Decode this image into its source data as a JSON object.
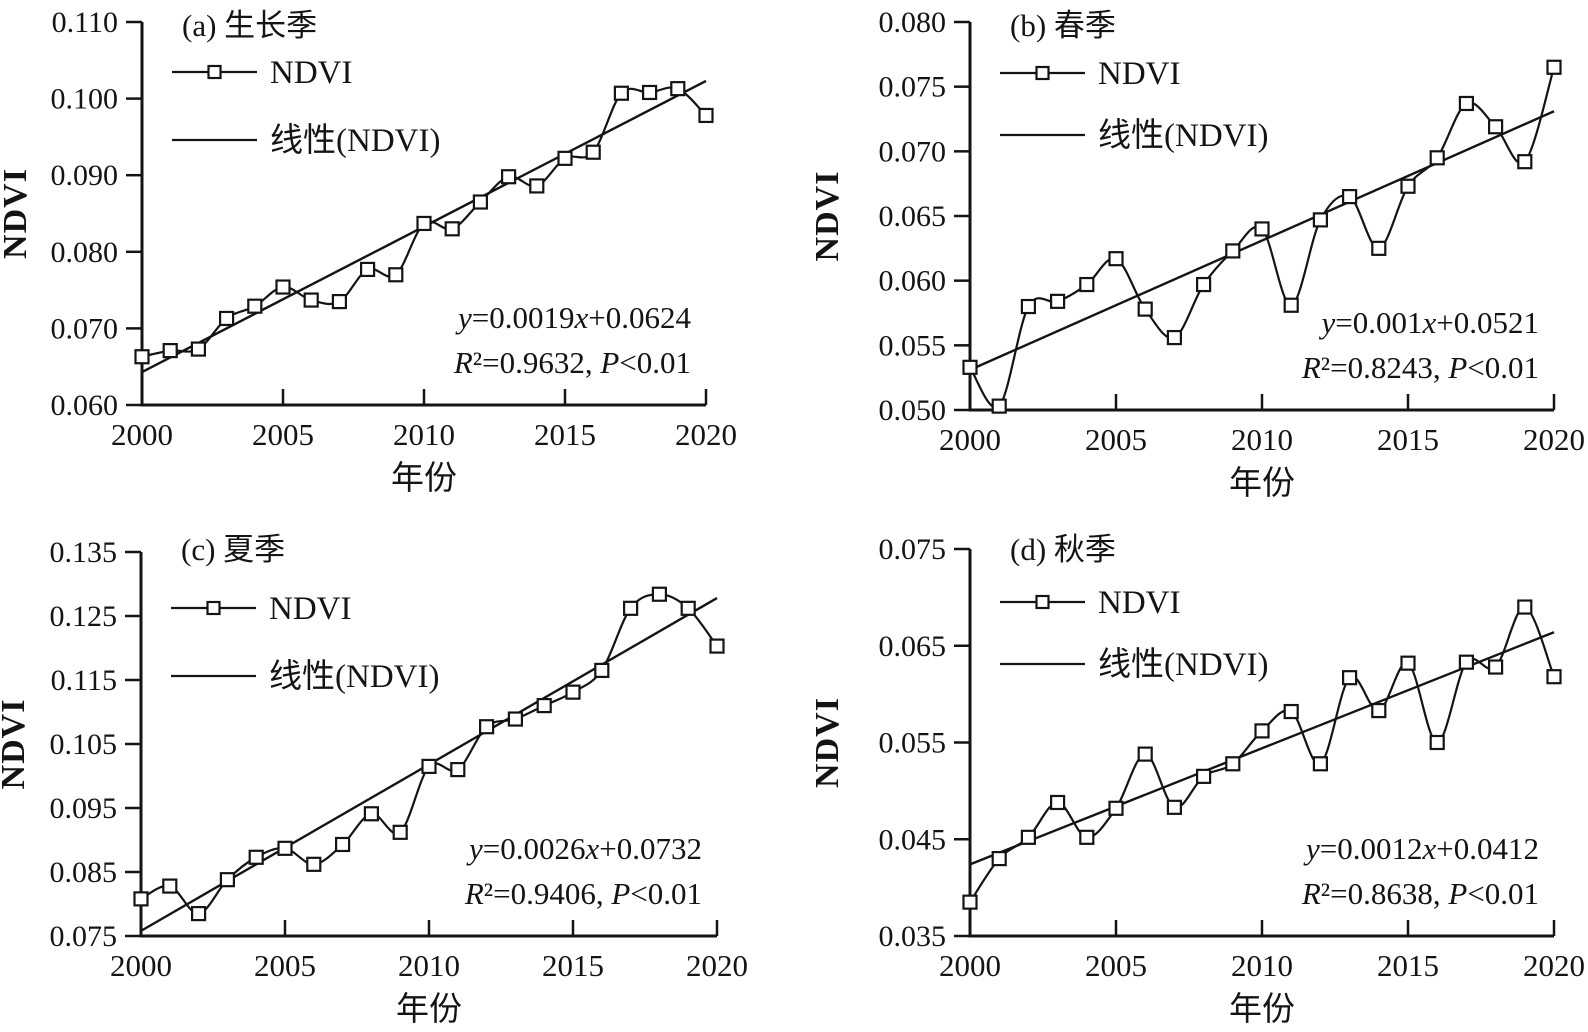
{
  "figure": {
    "x_axis_label": "年份",
    "y_axis_label": "NDVI",
    "legend_series_label": "NDVI",
    "legend_trend_label": "线性(NDVI)",
    "line_color": "#141414",
    "marker_fill": "#ffffff"
  },
  "chart_data": [
    {
      "id": "a",
      "type": "line",
      "title": "(a) 生长季",
      "xlabel": "年份",
      "ylabel": "NDVI",
      "x": [
        2000,
        2001,
        2002,
        2003,
        2004,
        2005,
        2006,
        2007,
        2008,
        2009,
        2010,
        2011,
        2012,
        2013,
        2014,
        2015,
        2016,
        2017,
        2018,
        2019,
        2020
      ],
      "series": [
        {
          "name": "NDVI",
          "values": [
            0.0663,
            0.0671,
            0.0673,
            0.0713,
            0.0729,
            0.0754,
            0.0737,
            0.0735,
            0.0777,
            0.077,
            0.0837,
            0.083,
            0.0865,
            0.0898,
            0.0886,
            0.0922,
            0.093,
            0.1007,
            0.1008,
            0.1013,
            0.0978
          ]
        }
      ],
      "trend": {
        "name": "线性(NDVI)",
        "slope": 0.0019,
        "intercept": 0.0624
      },
      "equation": "y=0.0019x+0.0624",
      "stats": "R²=0.9632, P<0.01",
      "ylim": [
        0.06,
        0.11
      ],
      "yticks": [
        0.06,
        0.07,
        0.08,
        0.09,
        0.1,
        0.11
      ],
      "y_tick_labels": [
        "0.060",
        "0.070",
        "0.080",
        "0.090",
        "0.100",
        "0.110"
      ],
      "xticks": [
        2000,
        2005,
        2010,
        2015,
        2020
      ],
      "x_tick_labels": [
        "2000",
        "2005",
        "2010",
        "2015",
        "2020"
      ],
      "legend": [
        "NDVI",
        "线性(NDVI)"
      ],
      "legend_position": "top-left",
      "grid": false
    },
    {
      "id": "b",
      "type": "line",
      "title": "(b) 春季",
      "xlabel": "年份",
      "ylabel": "NDVI",
      "x": [
        2000,
        2001,
        2002,
        2003,
        2004,
        2005,
        2006,
        2007,
        2008,
        2009,
        2010,
        2011,
        2012,
        2013,
        2014,
        2015,
        2016,
        2017,
        2018,
        2019,
        2020
      ],
      "series": [
        {
          "name": "NDVI",
          "values": [
            0.0533,
            0.0503,
            0.058,
            0.0584,
            0.0597,
            0.0617,
            0.0578,
            0.0556,
            0.0597,
            0.0623,
            0.064,
            0.0581,
            0.0647,
            0.0665,
            0.0625,
            0.0673,
            0.0695,
            0.0737,
            0.0719,
            0.0692,
            0.0765
          ]
        }
      ],
      "trend": {
        "name": "线性(NDVI)",
        "slope": 0.001,
        "intercept": 0.0521
      },
      "equation": "y=0.001x+0.0521",
      "stats": "R²=0.8243, P<0.01",
      "ylim": [
        0.05,
        0.08
      ],
      "yticks": [
        0.05,
        0.055,
        0.06,
        0.065,
        0.07,
        0.075,
        0.08
      ],
      "y_tick_labels": [
        "0.050",
        "0.055",
        "0.060",
        "0.065",
        "0.070",
        "0.075",
        "0.080"
      ],
      "xticks": [
        2000,
        2005,
        2010,
        2015,
        2020
      ],
      "x_tick_labels": [
        "2000",
        "2005",
        "2010",
        "2015",
        "2020"
      ],
      "legend": [
        "NDVI",
        "线性(NDVI)"
      ],
      "legend_position": "top-left",
      "grid": false
    },
    {
      "id": "c",
      "type": "line",
      "title": "(c) 夏季",
      "xlabel": "年份",
      "ylabel": "NDVI",
      "x": [
        2000,
        2001,
        2002,
        2003,
        2004,
        2005,
        2006,
        2007,
        2008,
        2009,
        2010,
        2011,
        2012,
        2013,
        2014,
        2015,
        2016,
        2017,
        2018,
        2019,
        2020
      ],
      "series": [
        {
          "name": "NDVI",
          "values": [
            0.0808,
            0.0828,
            0.0785,
            0.0838,
            0.0873,
            0.0887,
            0.0862,
            0.0893,
            0.0941,
            0.0912,
            0.1015,
            0.101,
            0.1077,
            0.1089,
            0.111,
            0.1131,
            0.1165,
            0.1262,
            0.1284,
            0.1262,
            0.1203
          ]
        }
      ],
      "trend": {
        "name": "线性(NDVI)",
        "slope": 0.0026,
        "intercept": 0.0732
      },
      "equation": "y=0.0026x+0.0732",
      "stats": "R²=0.9406, P<0.01",
      "ylim": [
        0.075,
        0.135
      ],
      "yticks": [
        0.075,
        0.085,
        0.095,
        0.105,
        0.115,
        0.125,
        0.135
      ],
      "y_tick_labels": [
        "0.075",
        "0.085",
        "0.095",
        "0.105",
        "0.115",
        "0.125",
        "0.135"
      ],
      "xticks": [
        2000,
        2005,
        2010,
        2015,
        2020
      ],
      "x_tick_labels": [
        "2000",
        "2005",
        "2010",
        "2015",
        "2020"
      ],
      "legend": [
        "NDVI",
        "线性(NDVI)"
      ],
      "legend_position": "top-left",
      "grid": false
    },
    {
      "id": "d",
      "type": "line",
      "title": "(d) 秋季",
      "xlabel": "年份",
      "ylabel": "NDVI",
      "x": [
        2000,
        2001,
        2002,
        2003,
        2004,
        2005,
        2006,
        2007,
        2008,
        2009,
        2010,
        2011,
        2012,
        2013,
        2014,
        2015,
        2016,
        2017,
        2018,
        2019,
        2020
      ],
      "series": [
        {
          "name": "NDVI",
          "values": [
            0.0385,
            0.043,
            0.0452,
            0.0488,
            0.0452,
            0.0482,
            0.0538,
            0.0483,
            0.0515,
            0.0528,
            0.0562,
            0.0582,
            0.0528,
            0.0617,
            0.0583,
            0.0632,
            0.055,
            0.0633,
            0.0628,
            0.069,
            0.0618
          ]
        }
      ],
      "trend": {
        "name": "线性(NDVI)",
        "slope": 0.0012,
        "intercept": 0.0412
      },
      "equation": "y=0.0012x+0.0412",
      "stats": "R²=0.8638, P<0.01",
      "ylim": [
        0.035,
        0.075
      ],
      "yticks": [
        0.035,
        0.045,
        0.055,
        0.065,
        0.075
      ],
      "y_tick_labels": [
        "0.035",
        "0.045",
        "0.055",
        "0.065",
        "0.075"
      ],
      "xticks": [
        2000,
        2005,
        2010,
        2015,
        2020
      ],
      "x_tick_labels": [
        "2000",
        "2005",
        "2010",
        "2015",
        "2020"
      ],
      "legend": [
        "NDVI",
        "线性(NDVI)"
      ],
      "legend_position": "top-left",
      "grid": false
    }
  ]
}
